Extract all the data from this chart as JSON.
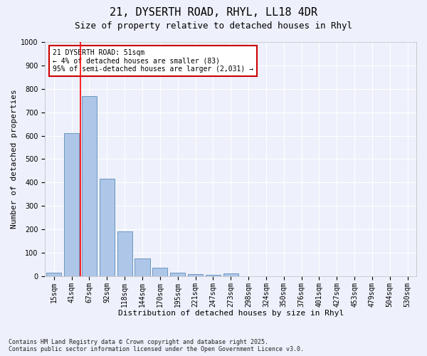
{
  "title_line1": "21, DYSERTH ROAD, RHYL, LL18 4DR",
  "title_line2": "Size of property relative to detached houses in Rhyl",
  "xlabel": "Distribution of detached houses by size in Rhyl",
  "ylabel": "Number of detached properties",
  "categories": [
    "15sqm",
    "41sqm",
    "67sqm",
    "92sqm",
    "118sqm",
    "144sqm",
    "170sqm",
    "195sqm",
    "221sqm",
    "247sqm",
    "273sqm",
    "298sqm",
    "324sqm",
    "350sqm",
    "376sqm",
    "401sqm",
    "427sqm",
    "453sqm",
    "479sqm",
    "504sqm",
    "530sqm"
  ],
  "values": [
    15,
    610,
    770,
    415,
    190,
    75,
    35,
    16,
    10,
    5,
    12,
    0,
    0,
    0,
    0,
    0,
    0,
    0,
    0,
    0,
    0
  ],
  "bar_color": "#aec6e8",
  "bar_edge_color": "#5b8db8",
  "red_line_x": 1.5,
  "ylim": [
    0,
    1000
  ],
  "yticks": [
    0,
    100,
    200,
    300,
    400,
    500,
    600,
    700,
    800,
    900,
    1000
  ],
  "annotation_text": "21 DYSERTH ROAD: 51sqm\n← 4% of detached houses are smaller (83)\n95% of semi-detached houses are larger (2,031) →",
  "annotation_box_color": "#ffffff",
  "annotation_box_edge": "#cc0000",
  "footnote": "Contains HM Land Registry data © Crown copyright and database right 2025.\nContains public sector information licensed under the Open Government Licence v3.0.",
  "background_color": "#eef1fb",
  "grid_color": "#ffffff",
  "title_fontsize": 11,
  "subtitle_fontsize": 9,
  "tick_fontsize": 7,
  "label_fontsize": 8,
  "footnote_fontsize": 6,
  "annotation_fontsize": 7
}
